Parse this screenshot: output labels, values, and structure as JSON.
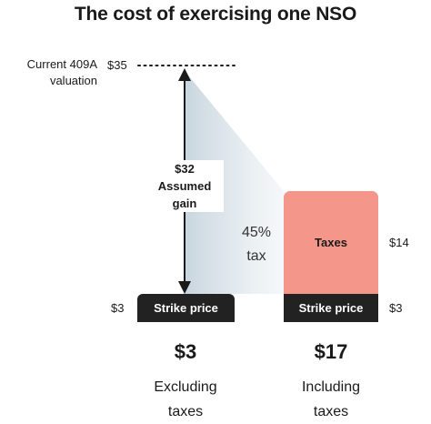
{
  "chart_data": {
    "type": "bar",
    "title": "The cost of exercising one NSO",
    "unit": "$",
    "ylim": [
      0,
      35
    ],
    "reference_line": {
      "label": "Current 409A valuation",
      "value_label": "$35",
      "value": 35
    },
    "gain": {
      "value_label": "$32",
      "label": "Assumed gain",
      "value": 32
    },
    "tax_rate_label": "45% tax",
    "tax_rate": 45,
    "columns": [
      {
        "name": "excluding",
        "segments": [
          {
            "label": "Strike price",
            "value": 3,
            "value_label": "$3",
            "color": "#222222"
          }
        ],
        "total_label": "$3",
        "caption_line1": "Excluding",
        "caption_line2": "taxes"
      },
      {
        "name": "including",
        "segments": [
          {
            "label": "Strike price",
            "value": 3,
            "value_label": "$3",
            "color": "#222222"
          },
          {
            "label": "Taxes",
            "value": 14,
            "value_label": "$14",
            "color": "#f4978a"
          }
        ],
        "total_label": "$17",
        "caption_line1": "Including",
        "caption_line2": "taxes"
      }
    ]
  },
  "colors": {
    "strike": "#222222",
    "taxes": "#f4978a",
    "cone_start": "#b7c8d4",
    "cone_end": "#eef3f6",
    "text": "#1a1a1a"
  }
}
